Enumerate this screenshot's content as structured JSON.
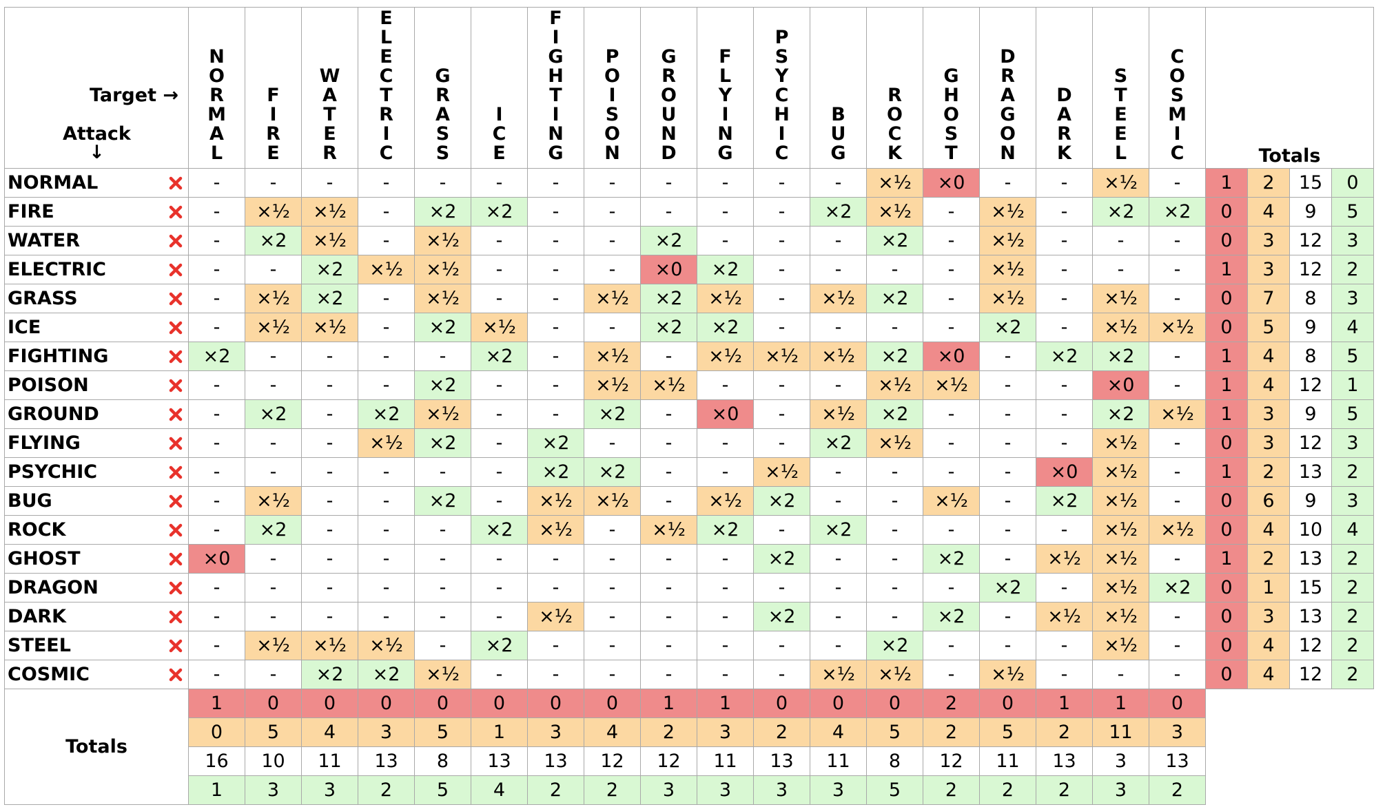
{
  "header": {
    "target_label": "Target →",
    "attack_label": "Attack",
    "attack_arrow": "↓",
    "totals_label": "Totals",
    "types": [
      "NORMAL",
      "FIRE",
      "WATER",
      "ELECTRIC",
      "GRASS",
      "ICE",
      "FIGHTING",
      "POISON",
      "GROUND",
      "FLYING",
      "PSYCHIC",
      "BUG",
      "ROCK",
      "GHOST",
      "DRAGON",
      "DARK",
      "STEEL",
      "COSMIC"
    ]
  },
  "rows": [
    {
      "name": "NORMAL",
      "cells": [
        "-",
        "-",
        "-",
        "-",
        "-",
        "-",
        "-",
        "-",
        "-",
        "-",
        "-",
        "-",
        "×½",
        "×0",
        "-",
        "-",
        "×½",
        "-"
      ],
      "totals": [
        1,
        2,
        15,
        0
      ]
    },
    {
      "name": "FIRE",
      "cells": [
        "-",
        "×½",
        "×½",
        "-",
        "×2",
        "×2",
        "-",
        "-",
        "-",
        "-",
        "-",
        "×2",
        "×½",
        "-",
        "×½",
        "-",
        "×2",
        "×2"
      ],
      "totals": [
        0,
        4,
        9,
        5
      ]
    },
    {
      "name": "WATER",
      "cells": [
        "-",
        "×2",
        "×½",
        "-",
        "×½",
        "-",
        "-",
        "-",
        "×2",
        "-",
        "-",
        "-",
        "×2",
        "-",
        "×½",
        "-",
        "-",
        "-"
      ],
      "totals": [
        0,
        3,
        12,
        3
      ]
    },
    {
      "name": "ELECTRIC",
      "cells": [
        "-",
        "-",
        "×2",
        "×½",
        "×½",
        "-",
        "-",
        "-",
        "×0",
        "×2",
        "-",
        "-",
        "-",
        "-",
        "×½",
        "-",
        "-",
        "-"
      ],
      "totals": [
        1,
        3,
        12,
        2
      ]
    },
    {
      "name": "GRASS",
      "cells": [
        "-",
        "×½",
        "×2",
        "-",
        "×½",
        "-",
        "-",
        "×½",
        "×2",
        "×½",
        "-",
        "×½",
        "×2",
        "-",
        "×½",
        "-",
        "×½",
        "-"
      ],
      "totals": [
        0,
        7,
        8,
        3
      ]
    },
    {
      "name": "ICE",
      "cells": [
        "-",
        "×½",
        "×½",
        "-",
        "×2",
        "×½",
        "-",
        "-",
        "×2",
        "×2",
        "-",
        "-",
        "-",
        "-",
        "×2",
        "-",
        "×½",
        "×½"
      ],
      "totals": [
        0,
        5,
        9,
        4
      ]
    },
    {
      "name": "FIGHTING",
      "cells": [
        "×2",
        "-",
        "-",
        "-",
        "-",
        "×2",
        "-",
        "×½",
        "-",
        "×½",
        "×½",
        "×½",
        "×2",
        "×0",
        "-",
        "×2",
        "×2",
        "-"
      ],
      "totals": [
        1,
        4,
        8,
        5
      ]
    },
    {
      "name": "POISON",
      "cells": [
        "-",
        "-",
        "-",
        "-",
        "×2",
        "-",
        "-",
        "×½",
        "×½",
        "-",
        "-",
        "-",
        "×½",
        "×½",
        "-",
        "-",
        "×0",
        "-"
      ],
      "totals": [
        1,
        4,
        12,
        1
      ]
    },
    {
      "name": "GROUND",
      "cells": [
        "-",
        "×2",
        "-",
        "×2",
        "×½",
        "-",
        "-",
        "×2",
        "-",
        "×0",
        "-",
        "×½",
        "×2",
        "-",
        "-",
        "-",
        "×2",
        "×½"
      ],
      "totals": [
        1,
        3,
        9,
        5
      ]
    },
    {
      "name": "FLYING",
      "cells": [
        "-",
        "-",
        "-",
        "×½",
        "×2",
        "-",
        "×2",
        "-",
        "-",
        "-",
        "-",
        "×2",
        "×½",
        "-",
        "-",
        "-",
        "×½",
        "-"
      ],
      "totals": [
        0,
        3,
        12,
        3
      ]
    },
    {
      "name": "PSYCHIC",
      "cells": [
        "-",
        "-",
        "-",
        "-",
        "-",
        "-",
        "×2",
        "×2",
        "-",
        "-",
        "×½",
        "-",
        "-",
        "-",
        "-",
        "×0",
        "×½",
        "-"
      ],
      "totals": [
        1,
        2,
        13,
        2
      ]
    },
    {
      "name": "BUG",
      "cells": [
        "-",
        "×½",
        "-",
        "-",
        "×2",
        "-",
        "×½",
        "×½",
        "-",
        "×½",
        "×2",
        "-",
        "-",
        "×½",
        "-",
        "×2",
        "×½",
        "-"
      ],
      "totals": [
        0,
        6,
        9,
        3
      ]
    },
    {
      "name": "ROCK",
      "cells": [
        "-",
        "×2",
        "-",
        "-",
        "-",
        "×2",
        "×½",
        "-",
        "×½",
        "×2",
        "-",
        "×2",
        "-",
        "-",
        "-",
        "-",
        "×½",
        "×½"
      ],
      "totals": [
        0,
        4,
        10,
        4
      ]
    },
    {
      "name": "GHOST",
      "cells": [
        "×0",
        "-",
        "-",
        "-",
        "-",
        "-",
        "-",
        "-",
        "-",
        "-",
        "×2",
        "-",
        "-",
        "×2",
        "-",
        "×½",
        "×½",
        "-"
      ],
      "totals": [
        1,
        2,
        13,
        2
      ]
    },
    {
      "name": "DRAGON",
      "cells": [
        "-",
        "-",
        "-",
        "-",
        "-",
        "-",
        "-",
        "-",
        "-",
        "-",
        "-",
        "-",
        "-",
        "-",
        "×2",
        "-",
        "×½",
        "×2"
      ],
      "totals": [
        0,
        1,
        15,
        2
      ]
    },
    {
      "name": "DARK",
      "cells": [
        "-",
        "-",
        "-",
        "-",
        "-",
        "-",
        "×½",
        "-",
        "-",
        "-",
        "×2",
        "-",
        "-",
        "×2",
        "-",
        "×½",
        "×½",
        "-"
      ],
      "totals": [
        0,
        3,
        13,
        2
      ]
    },
    {
      "name": "STEEL",
      "cells": [
        "-",
        "×½",
        "×½",
        "×½",
        "-",
        "×2",
        "-",
        "-",
        "-",
        "-",
        "-",
        "-",
        "×2",
        "-",
        "-",
        "-",
        "×½",
        "-"
      ],
      "totals": [
        0,
        4,
        12,
        2
      ]
    },
    {
      "name": "COSMIC",
      "cells": [
        "-",
        "-",
        "×2",
        "×2",
        "×½",
        "-",
        "-",
        "-",
        "-",
        "-",
        "-",
        "×½",
        "×½",
        "-",
        "×½",
        "-",
        "-",
        "-"
      ],
      "totals": [
        0,
        4,
        12,
        2
      ]
    }
  ],
  "column_totals": {
    "label": "Totals",
    "rows": [
      [
        1,
        0,
        0,
        0,
        0,
        0,
        0,
        0,
        1,
        1,
        0,
        0,
        0,
        2,
        0,
        1,
        1,
        0
      ],
      [
        0,
        5,
        4,
        3,
        5,
        1,
        3,
        4,
        2,
        3,
        2,
        4,
        5,
        2,
        5,
        2,
        11,
        3
      ],
      [
        16,
        10,
        11,
        13,
        8,
        13,
        13,
        12,
        12,
        11,
        13,
        11,
        8,
        12,
        11,
        13,
        3,
        13
      ],
      [
        1,
        3,
        3,
        2,
        5,
        4,
        2,
        2,
        3,
        3,
        3,
        3,
        5,
        2,
        2,
        2,
        3,
        2
      ]
    ]
  },
  "cell_colors": {
    "×0": "#ef8b8b",
    "×½": "#fcd8a2",
    "×2": "#d9f8d3"
  },
  "total_colors": [
    "#ef8b8b",
    "#fcd8a2",
    "#ffffff",
    "#d9f8d3"
  ]
}
